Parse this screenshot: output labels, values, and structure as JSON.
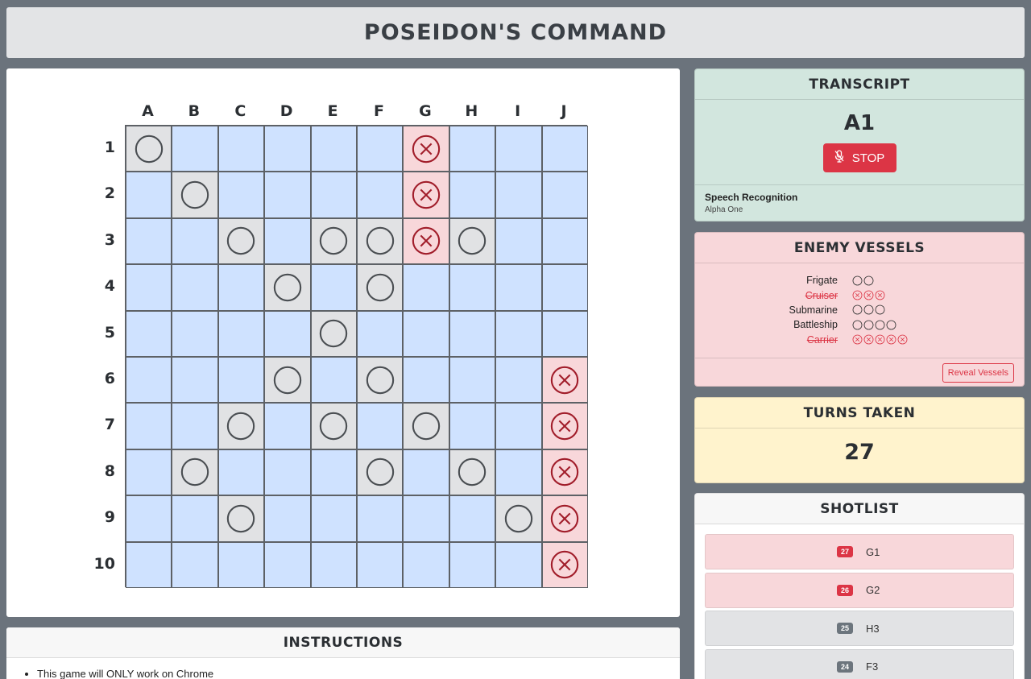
{
  "header": {
    "title": "POSEIDON'S COMMAND"
  },
  "board": {
    "columns": [
      "A",
      "B",
      "C",
      "D",
      "E",
      "F",
      "G",
      "H",
      "I",
      "J"
    ],
    "rows": [
      "1",
      "2",
      "3",
      "4",
      "5",
      "6",
      "7",
      "8",
      "9",
      "10"
    ],
    "misses": [
      "A1",
      "B2",
      "C3",
      "E3",
      "F3",
      "H3",
      "D4",
      "F4",
      "E5",
      "D6",
      "F6",
      "C7",
      "E7",
      "G7",
      "B8",
      "F8",
      "H8",
      "C9",
      "I9"
    ],
    "hits": [
      "G1",
      "G2",
      "G3",
      "J6",
      "J7",
      "J8",
      "J9",
      "J10"
    ]
  },
  "instructions": {
    "title": "INSTRUCTIONS",
    "first_item": "This game will ONLY work on Chrome"
  },
  "transcript": {
    "title": "TRANSCRIPT",
    "word": "A1",
    "stop_label": "STOP",
    "speech_label": "Speech Recognition",
    "speech_value": "Alpha One"
  },
  "enemy_vessels": {
    "title": "ENEMY VESSELS",
    "vessels": [
      {
        "name": "Frigate",
        "size": 2,
        "sunk": false
      },
      {
        "name": "Cruiser",
        "size": 3,
        "sunk": true
      },
      {
        "name": "Submarine",
        "size": 3,
        "sunk": false
      },
      {
        "name": "Battleship",
        "size": 4,
        "sunk": false
      },
      {
        "name": "Carrier",
        "size": 5,
        "sunk": true
      }
    ],
    "reveal_label": "Reveal Vessels"
  },
  "turns": {
    "title": "TURNS TAKEN",
    "count": "27"
  },
  "shotlist": {
    "title": "SHOTLIST",
    "shots": [
      {
        "num": "27",
        "coord": "G1",
        "result": "hit"
      },
      {
        "num": "26",
        "coord": "G2",
        "result": "hit"
      },
      {
        "num": "25",
        "coord": "H3",
        "result": "miss"
      },
      {
        "num": "24",
        "coord": "F3",
        "result": "miss"
      }
    ]
  },
  "colors": {
    "hit": "#dc3545",
    "hit_bg": "#f8d7da",
    "miss_bg": "#e1e2e4",
    "water": "#cfe2ff",
    "transcript_bg": "#d2e6de",
    "turns_bg": "#fff3cd"
  }
}
